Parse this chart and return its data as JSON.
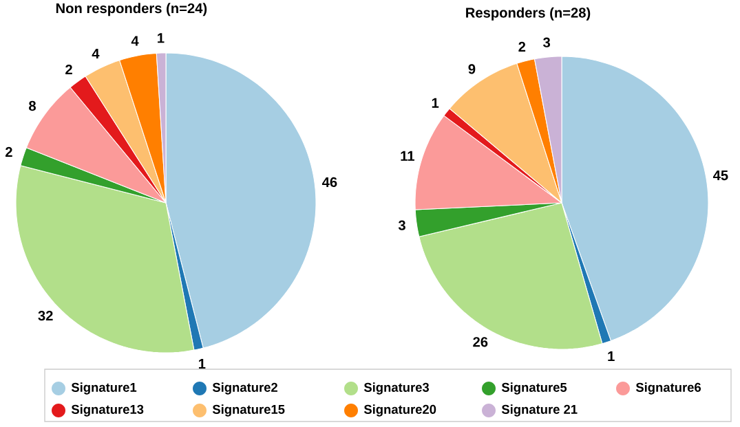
{
  "chart_data": [
    {
      "type": "pie",
      "title": "Non responders (n=24)",
      "categories": [
        "Signature1",
        "Signature2",
        "Signature3",
        "Signature5",
        "Signature6",
        "Signature13",
        "Signature15",
        "Signature20",
        "Signature 21"
      ],
      "values": [
        46,
        1,
        32,
        2,
        8,
        2,
        4,
        4,
        1
      ],
      "colors": [
        "#a6cee3",
        "#1f78b4",
        "#b2df8a",
        "#33a02c",
        "#fb9a99",
        "#e31a1c",
        "#fdbf6f",
        "#ff7f00",
        "#cab2d6"
      ],
      "data_labels": true,
      "legend": "bottom"
    },
    {
      "type": "pie",
      "title": "Responders (n=28)",
      "values": [
        45,
        1,
        26,
        3,
        11,
        1,
        9,
        2,
        3
      ],
      "colors": [
        "#a6cee3",
        "#1f78b4",
        "#b2df8a",
        "#33a02c",
        "#fb9a99",
        "#e31a1c",
        "#fdbf6f",
        "#ff7f00",
        "#cab2d6"
      ],
      "data_labels": true
    }
  ]
}
